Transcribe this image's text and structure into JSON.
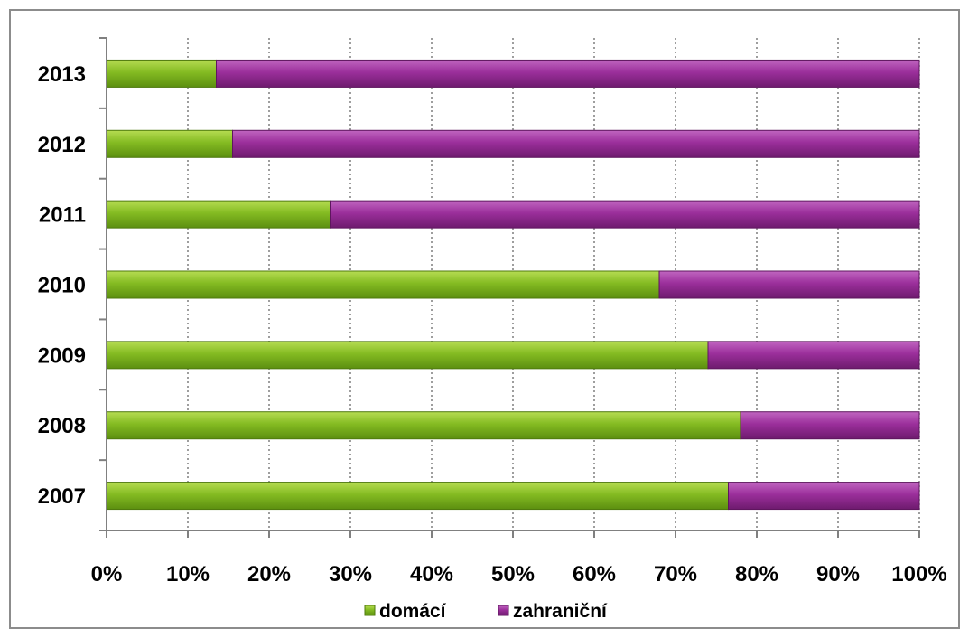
{
  "chart_data": {
    "type": "bar",
    "orientation": "horizontal",
    "stacked": "percent",
    "categories": [
      "2013",
      "2012",
      "2011",
      "2010",
      "2009",
      "2008",
      "2007"
    ],
    "series": [
      {
        "name": "domácí",
        "values": [
          13.5,
          15.5,
          27.5,
          68.0,
          74.0,
          78.0,
          76.5
        ]
      },
      {
        "name": "zahraniční",
        "values": [
          86.5,
          84.5,
          72.5,
          32.0,
          26.0,
          22.0,
          23.5
        ]
      }
    ],
    "xlim": [
      0,
      100
    ],
    "x_ticks": [
      "0%",
      "10%",
      "20%",
      "30%",
      "40%",
      "50%",
      "60%",
      "70%",
      "80%",
      "90%",
      "100%"
    ],
    "grid": "vertical dotted",
    "legend": "bottom",
    "colors": {
      "domácí": "#7ab317",
      "zahraniční": "#962e96"
    }
  }
}
